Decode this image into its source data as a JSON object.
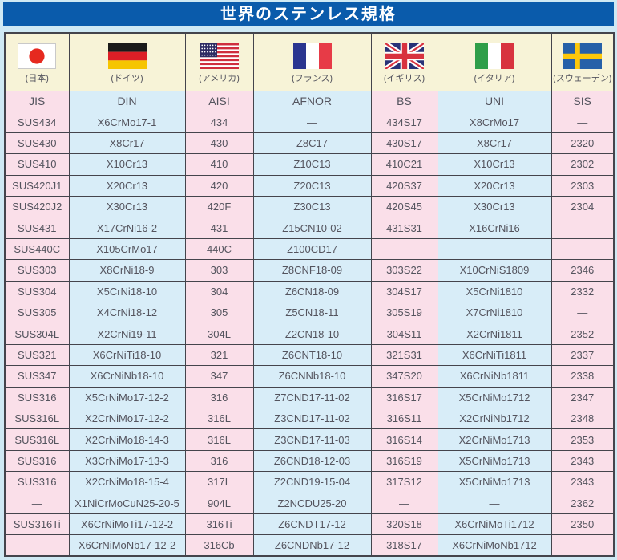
{
  "title": "世界のステンレス規格",
  "colors": {
    "page_bg": "#cfe9f4",
    "title_bar": "#0a5bab",
    "title_text": "#ffffff",
    "flag_row_bg": "#f7f3d7",
    "pink": "#fadfe9",
    "blue": "#d8edf8",
    "grid": "#44444c",
    "cell_text": "#54545e"
  },
  "table": {
    "countries": [
      {
        "label": "(日本)",
        "flag": "japan"
      },
      {
        "label": "(ドイツ)",
        "flag": "germany"
      },
      {
        "label": "(アメリカ)",
        "flag": "usa"
      },
      {
        "label": "(フランス)",
        "flag": "france"
      },
      {
        "label": "(イギリス)",
        "flag": "uk"
      },
      {
        "label": "(イタリア)",
        "flag": "italy"
      },
      {
        "label": "(スウェーデン)",
        "flag": "sweden"
      }
    ],
    "standards": [
      "JIS",
      "DIN",
      "AISI",
      "AFNOR",
      "BS",
      "UNI",
      "SIS"
    ],
    "rows": [
      [
        "SUS434",
        "X6CrMo17-1",
        "434",
        "—",
        "434S17",
        "X8CrMo17",
        "—"
      ],
      [
        "SUS430",
        "X8Cr17",
        "430",
        "Z8C17",
        "430S17",
        "X8Cr17",
        "2320"
      ],
      [
        "SUS410",
        "X10Cr13",
        "410",
        "Z10C13",
        "410C21",
        "X10Cr13",
        "2302"
      ],
      [
        "SUS420J1",
        "X20Cr13",
        "420",
        "Z20C13",
        "420S37",
        "X20Cr13",
        "2303"
      ],
      [
        "SUS420J2",
        "X30Cr13",
        "420F",
        "Z30C13",
        "420S45",
        "X30Cr13",
        "2304"
      ],
      [
        "SUS431",
        "X17CrNi16-2",
        "431",
        "Z15CN10-02",
        "431S31",
        "X16CrNi16",
        "—"
      ],
      [
        "SUS440C",
        "X105CrMo17",
        "440C",
        "Z100CD17",
        "—",
        "—",
        "—"
      ],
      [
        "SUS303",
        "X8CrNi18-9",
        "303",
        "Z8CNF18-09",
        "303S22",
        "X10CrNiS1809",
        "2346"
      ],
      [
        "SUS304",
        "X5CrNi18-10",
        "304",
        "Z6CN18-09",
        "304S17",
        "X5CrNi1810",
        "2332"
      ],
      [
        "SUS305",
        "X4CrNi18-12",
        "305",
        "Z5CN18-11",
        "305S19",
        "X7CrNi1810",
        "—"
      ],
      [
        "SUS304L",
        "X2CrNi19-11",
        "304L",
        "Z2CN18-10",
        "304S11",
        "X2CrNi1811",
        "2352"
      ],
      [
        "SUS321",
        "X6CrNiTi18-10",
        "321",
        "Z6CNT18-10",
        "321S31",
        "X6CrNiTi1811",
        "2337"
      ],
      [
        "SUS347",
        "X6CrNiNb18-10",
        "347",
        "Z6CNNb18-10",
        "347S20",
        "X6CrNiNb1811",
        "2338"
      ],
      [
        "SUS316",
        "X5CrNiMo17-12-2",
        "316",
        "Z7CND17-11-02",
        "316S17",
        "X5CrNiMo1712",
        "2347"
      ],
      [
        "SUS316L",
        "X2CrNiMo17-12-2",
        "316L",
        "Z3CND17-11-02",
        "316S11",
        "X2CrNiNb1712",
        "2348"
      ],
      [
        "SUS316L",
        "X2CrNiMo18-14-3",
        "316L",
        "Z3CND17-11-03",
        "316S14",
        "X2CrNiMo1713",
        "2353"
      ],
      [
        "SUS316",
        "X3CrNiMo17-13-3",
        "316",
        "Z6CND18-12-03",
        "316S19",
        "X5CrNiMo1713",
        "2343"
      ],
      [
        "SUS316",
        "X2CrNiMo18-15-4",
        "317L",
        "Z2CND19-15-04",
        "317S12",
        "X5CrNiMo1713",
        "2343"
      ],
      [
        "—",
        "X1NiCrMoCuN25-20-5",
        "904L",
        "Z2NCDU25-20",
        "—",
        "—",
        "2362"
      ],
      [
        "SUS316Ti",
        "X6CrNiMoTi17-12-2",
        "316Ti",
        "Z6CNDT17-12",
        "320S18",
        "X6CrNiMoTi1712",
        "2350"
      ],
      [
        "—",
        "X6CrNiMoNb17-12-2",
        "316Cb",
        "Z6CNDNb17-12",
        "318S17",
        "X6CrNiMoNb1712",
        "—"
      ]
    ]
  }
}
